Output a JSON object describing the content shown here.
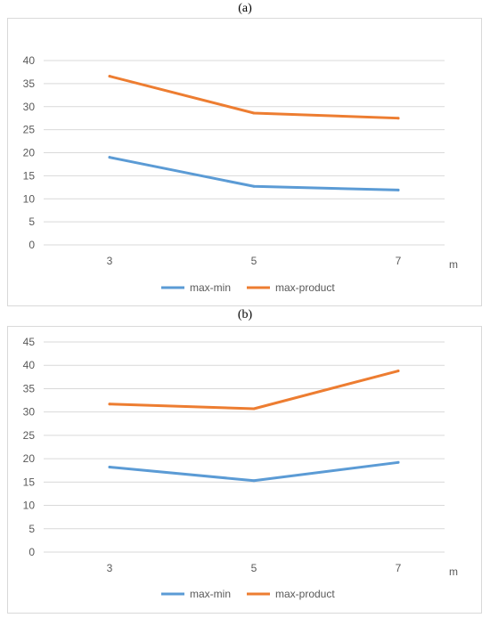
{
  "chart_data": [
    {
      "type": "line",
      "caption": "(a)",
      "xlabel": "m",
      "categories": [
        "3",
        "5",
        "7"
      ],
      "ylim": [
        0,
        40
      ],
      "yticks": [
        0,
        5,
        10,
        15,
        20,
        25,
        30,
        35,
        40
      ],
      "grid": true,
      "legend_position": "bottom",
      "series": [
        {
          "name": "max-min",
          "color": "#5b9bd5",
          "values": [
            19.0,
            12.7,
            11.9
          ]
        },
        {
          "name": "max-product",
          "color": "#ed7d31",
          "values": [
            36.6,
            28.6,
            27.5
          ]
        }
      ]
    },
    {
      "type": "line",
      "caption": "(b)",
      "xlabel": "m",
      "categories": [
        "3",
        "5",
        "7"
      ],
      "ylim": [
        0,
        45
      ],
      "yticks": [
        0,
        5,
        10,
        15,
        20,
        25,
        30,
        35,
        40,
        45
      ],
      "grid": true,
      "legend_position": "bottom",
      "series": [
        {
          "name": "max-min",
          "color": "#5b9bd5",
          "values": [
            18.2,
            15.3,
            19.2
          ]
        },
        {
          "name": "max-product",
          "color": "#ed7d31",
          "values": [
            31.7,
            30.7,
            38.8
          ]
        }
      ]
    }
  ]
}
